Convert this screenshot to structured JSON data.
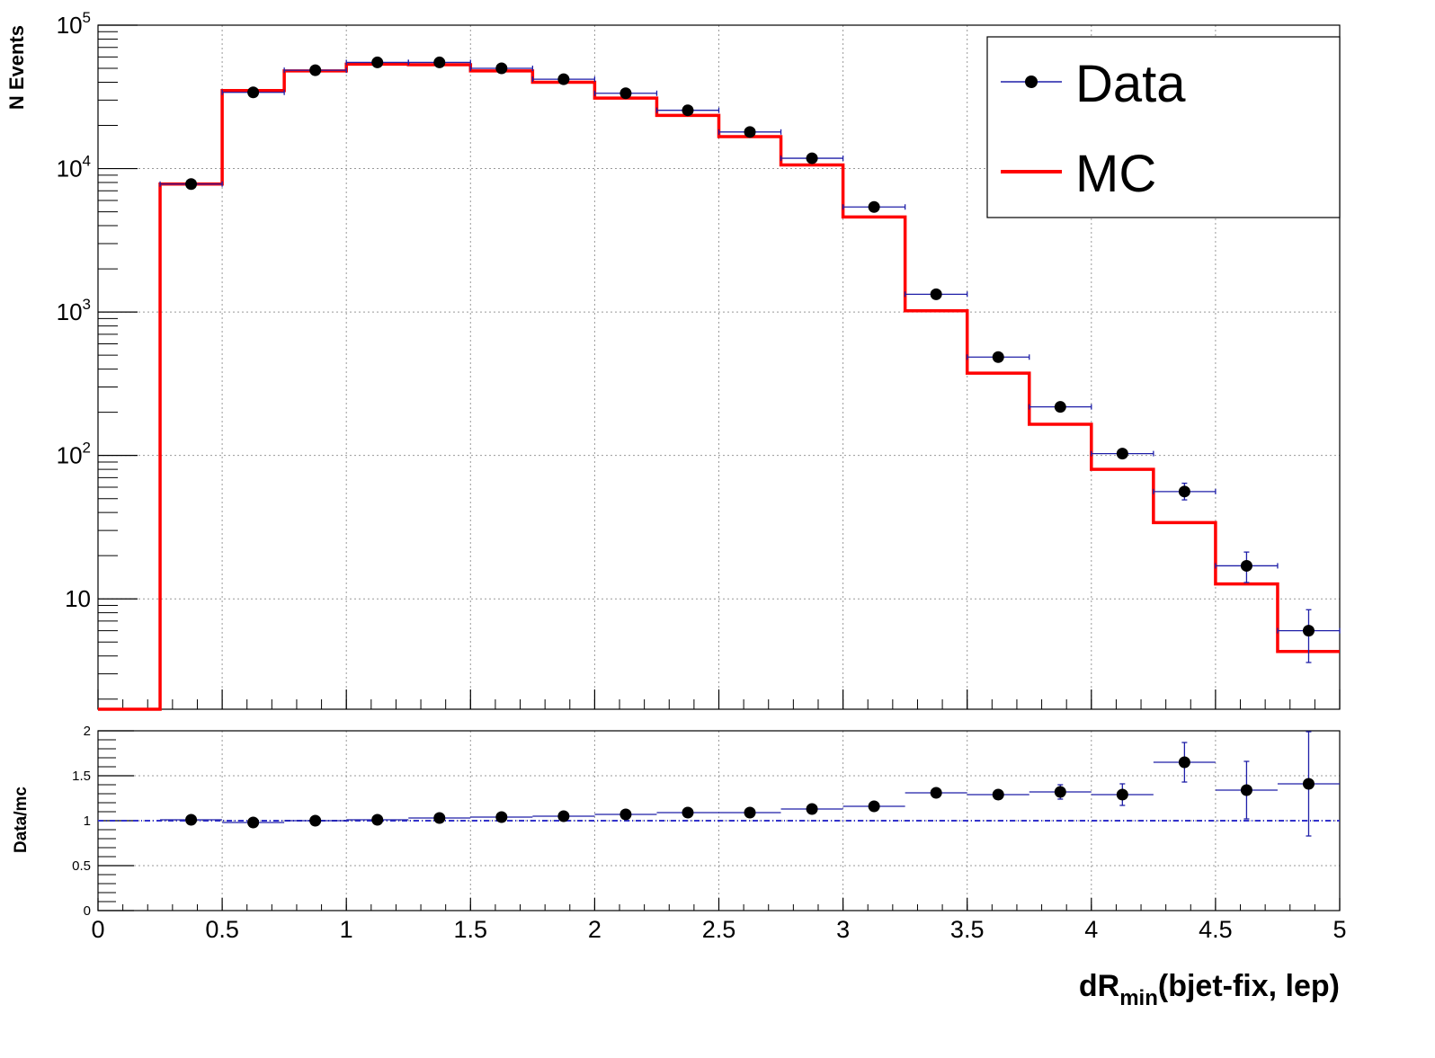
{
  "chart_data": [
    {
      "type": "line",
      "panel": "main",
      "ylabel": "N Events",
      "yscale": "log",
      "xlim": [
        0,
        5
      ],
      "ylim": [
        1.7,
        100000
      ],
      "grid": true,
      "legend_position": "top-right",
      "y_ticks": [
        {
          "value": 100000,
          "base": "10",
          "exp": "5"
        },
        {
          "value": 10000,
          "base": "10",
          "exp": "4"
        },
        {
          "value": 1000,
          "base": "10",
          "exp": "3"
        },
        {
          "value": 100,
          "base": "10",
          "exp": "2"
        },
        {
          "value": 10,
          "base": "10",
          "exp": ""
        }
      ],
      "bin_edges": [
        0,
        0.25,
        0.5,
        0.75,
        1.0,
        1.25,
        1.5,
        1.75,
        2.0,
        2.25,
        2.5,
        2.75,
        3.0,
        3.25,
        3.5,
        3.75,
        4.0,
        4.25,
        4.5,
        4.75,
        5.0
      ],
      "series": [
        {
          "name": "Data",
          "kind": "points",
          "x": [
            0.375,
            0.625,
            0.875,
            1.125,
            1.375,
            1.625,
            1.875,
            2.125,
            2.375,
            2.625,
            2.875,
            3.125,
            3.375,
            3.625,
            3.875,
            4.125,
            4.375,
            4.625,
            4.875
          ],
          "values": [
            7800,
            34000,
            48500,
            55000,
            55000,
            50000,
            42000,
            33500,
            25500,
            18000,
            11800,
            5400,
            1330,
            485,
            218,
            103,
            56,
            17,
            6
          ],
          "yerr_low": [
            0,
            0,
            0,
            0,
            0,
            0,
            0,
            0,
            0,
            0,
            0,
            0,
            0,
            0,
            0,
            0,
            7,
            4,
            2.4
          ],
          "yerr_high": [
            0,
            0,
            0,
            0,
            0,
            0,
            0,
            0,
            0,
            0,
            0,
            0,
            0,
            0,
            0,
            0,
            8,
            4.2,
            2.4
          ]
        },
        {
          "name": "MC",
          "kind": "step",
          "values": [
            0,
            7800,
            35000,
            48000,
            53500,
            53000,
            48000,
            40000,
            31000,
            23500,
            16700,
            10600,
            4600,
            1020,
            375,
            165,
            80,
            34,
            12.7,
            4.3
          ]
        }
      ]
    },
    {
      "type": "line",
      "panel": "ratio",
      "ylabel": "Data/mc",
      "xlabel_main": "dR",
      "xlabel_sub": "min",
      "xlabel_rest": "(bjet-fix, lep)",
      "xlim": [
        0,
        5
      ],
      "ylim": [
        0,
        2
      ],
      "grid": true,
      "x_ticks": [
        "0",
        "0.5",
        "1",
        "1.5",
        "2",
        "2.5",
        "3",
        "3.5",
        "4",
        "4.5",
        "5"
      ],
      "y_ticks": [
        "0",
        "0.5",
        "1",
        "1.5",
        "2"
      ],
      "reference_line": 1,
      "series": [
        {
          "name": "Data/mc",
          "kind": "points",
          "x": [
            0.375,
            0.625,
            0.875,
            1.125,
            1.375,
            1.625,
            1.875,
            2.125,
            2.375,
            2.625,
            2.875,
            3.125,
            3.375,
            3.625,
            3.875,
            4.125,
            4.375,
            4.625,
            4.875
          ],
          "values": [
            1.01,
            0.98,
            1.0,
            1.01,
            1.03,
            1.04,
            1.05,
            1.07,
            1.09,
            1.09,
            1.13,
            1.16,
            1.31,
            1.29,
            1.32,
            1.29,
            1.65,
            1.34,
            1.41
          ],
          "yerr": [
            0.01,
            0.01,
            0.01,
            0.01,
            0.01,
            0.01,
            0.01,
            0.01,
            0.01,
            0.01,
            0.01,
            0.02,
            0.03,
            0.05,
            0.08,
            0.12,
            0.22,
            0.32,
            0.58
          ]
        }
      ]
    }
  ],
  "legend": {
    "items": [
      {
        "label": "Data",
        "color": "#000000",
        "line_color": "#1f1fa8"
      },
      {
        "label": "MC",
        "color": "#ff0000"
      }
    ]
  },
  "colors": {
    "data_marker": "#000000",
    "data_errorbar": "#1f1fa8",
    "mc_line": "#ff0000",
    "ratio_reference": "#3333cc",
    "grid": "#999999"
  }
}
